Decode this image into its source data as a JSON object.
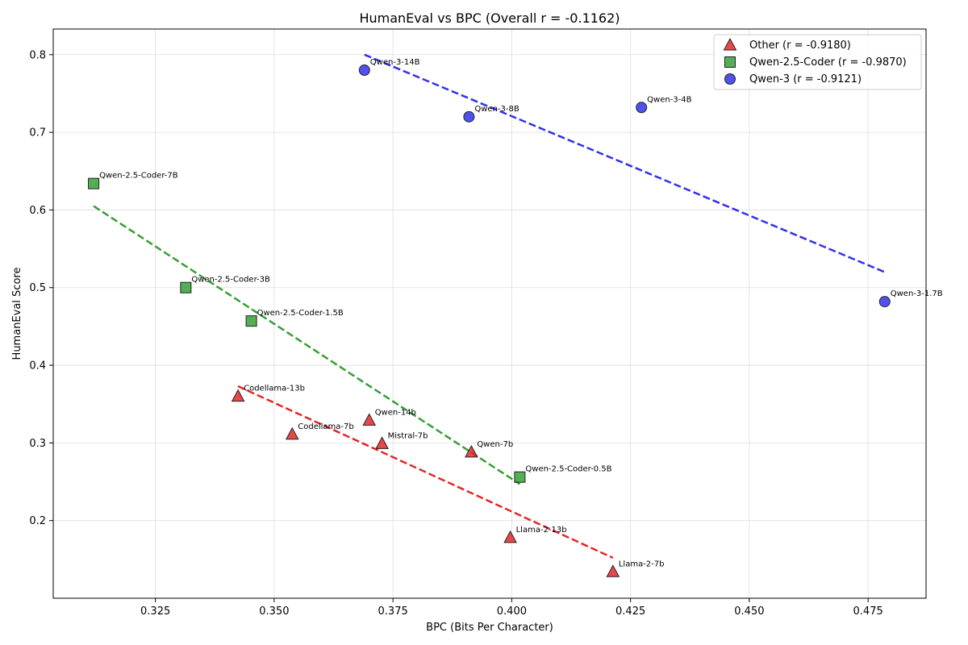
{
  "chart_data": {
    "type": "scatter",
    "title": "HumanEval vs BPC (Overall r = -0.1162)",
    "xlabel": "BPC (Bits Per Character)",
    "ylabel": "HumanEval Score",
    "xlim": [
      0.3035,
      0.4872
    ],
    "ylim": [
      0.1,
      0.833
    ],
    "xticks": [
      0.325,
      0.35,
      0.375,
      0.4,
      0.425,
      0.45,
      0.475
    ],
    "xtick_labels": [
      "0.325",
      "0.350",
      "0.375",
      "0.400",
      "0.425",
      "0.450",
      "0.475"
    ],
    "yticks": [
      0.2,
      0.3,
      0.4,
      0.5,
      0.6,
      0.7,
      0.8
    ],
    "ytick_labels": [
      "0.2",
      "0.3",
      "0.4",
      "0.5",
      "0.6",
      "0.7",
      "0.8"
    ],
    "grid": true,
    "legend_position": "top-right",
    "series": [
      {
        "name": "Other (r = -0.9180)",
        "marker": "triangle",
        "color": "#e41a1c",
        "points": [
          {
            "label": "Codellama-13b",
            "x": 0.3424,
            "y": 0.36
          },
          {
            "label": "Codellama-7b",
            "x": 0.3538,
            "y": 0.311
          },
          {
            "label": "Qwen-14b",
            "x": 0.37,
            "y": 0.329
          },
          {
            "label": "Mistral-7b",
            "x": 0.3727,
            "y": 0.299
          },
          {
            "label": "Qwen-7b",
            "x": 0.3915,
            "y": 0.288
          },
          {
            "label": "Llama-2-13b",
            "x": 0.3997,
            "y": 0.178
          },
          {
            "label": "Llama-2-7b",
            "x": 0.4213,
            "y": 0.134
          }
        ],
        "trend": {
          "x": [
            0.3424,
            0.4213
          ],
          "y": [
            0.373,
            0.152
          ]
        }
      },
      {
        "name": "Qwen-2.5-Coder (r = -0.9870)",
        "marker": "square",
        "color": "#2a9a2a",
        "points": [
          {
            "label": "Qwen-2.5-Coder-7B",
            "x": 0.312,
            "y": 0.634
          },
          {
            "label": "Qwen-2.5-Coder-3B",
            "x": 0.3314,
            "y": 0.5
          },
          {
            "label": "Qwen-2.5-Coder-1.5B",
            "x": 0.3452,
            "y": 0.457
          },
          {
            "label": "Qwen-2.5-Coder-0.5B",
            "x": 0.4017,
            "y": 0.256
          }
        ],
        "trend": {
          "x": [
            0.312,
            0.4017
          ],
          "y": [
            0.605,
            0.247
          ]
        }
      },
      {
        "name": "Qwen-3 (r = -0.9121)",
        "marker": "circle",
        "color": "#2626e8",
        "points": [
          {
            "label": "Qwen-3-14B",
            "x": 0.369,
            "y": 0.78
          },
          {
            "label": "Qwen-3-8B",
            "x": 0.391,
            "y": 0.72
          },
          {
            "label": "Qwen-3-4B",
            "x": 0.4273,
            "y": 0.732
          },
          {
            "label": "Qwen-3-1.7B",
            "x": 0.4785,
            "y": 0.482
          }
        ],
        "trend": {
          "x": [
            0.369,
            0.4785
          ],
          "y": [
            0.8,
            0.52
          ]
        }
      }
    ]
  }
}
